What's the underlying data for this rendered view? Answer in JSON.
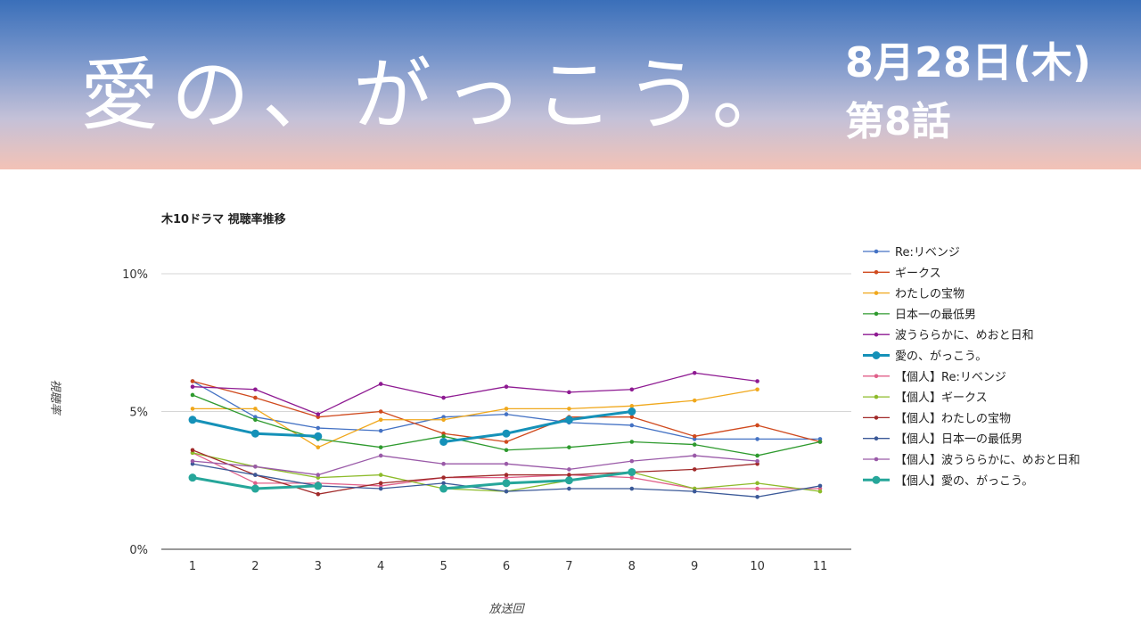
{
  "header": {
    "show_title": "愛の、がっこう。",
    "air_date": "8月28日(木)",
    "episode": "第8話"
  },
  "chart_data": {
    "type": "line",
    "title": "木10ドラマ 視聴率推移",
    "xlabel": "放送回",
    "ylabel": "視聴率",
    "x": [
      1,
      2,
      3,
      4,
      5,
      6,
      7,
      8,
      9,
      10,
      11
    ],
    "ylim": [
      0,
      10
    ],
    "yticks": [
      "0%",
      "5%",
      "10%"
    ],
    "ytick_values": [
      0,
      5,
      10
    ],
    "grid": true,
    "legend_position": "right",
    "series": [
      {
        "name": "Re:リベンジ",
        "color": "#4472c4",
        "values": [
          6.1,
          4.8,
          4.4,
          4.3,
          4.8,
          4.9,
          4.6,
          4.5,
          4.0,
          4.0,
          4.0
        ]
      },
      {
        "name": "ギークス",
        "color": "#d04a1e",
        "values": [
          6.1,
          5.5,
          4.8,
          5.0,
          4.2,
          3.9,
          4.8,
          4.8,
          4.1,
          4.5,
          3.9
        ]
      },
      {
        "name": "わたしの宝物",
        "color": "#f0a81c",
        "values": [
          5.1,
          5.1,
          3.7,
          4.7,
          4.7,
          5.1,
          5.1,
          5.2,
          5.4,
          5.8,
          null
        ]
      },
      {
        "name": "日本一の最低男",
        "color": "#2e9a2e",
        "values": [
          5.6,
          4.7,
          4.0,
          3.7,
          4.1,
          3.6,
          3.7,
          3.9,
          3.8,
          3.4,
          3.9
        ]
      },
      {
        "name": "波うららかに、めおと日和",
        "color": "#8e1a92",
        "values": [
          5.9,
          5.8,
          4.9,
          6.0,
          5.5,
          5.9,
          5.7,
          5.8,
          6.4,
          6.1,
          null
        ]
      },
      {
        "name": "愛の、がっこう。",
        "color": "#1591b8",
        "bold": true,
        "values": [
          4.7,
          4.2,
          4.1,
          null,
          3.9,
          4.2,
          4.7,
          5.0,
          null,
          null,
          null
        ]
      },
      {
        "name": "【個人】Re:リベンジ",
        "color": "#e0608a",
        "values": [
          3.5,
          2.4,
          2.4,
          2.3,
          2.6,
          2.6,
          2.7,
          2.6,
          2.2,
          2.2,
          2.2
        ]
      },
      {
        "name": "【個人】ギークス",
        "color": "#8dbb2a",
        "values": [
          3.5,
          3.0,
          2.6,
          2.7,
          2.2,
          2.1,
          2.5,
          2.8,
          2.2,
          2.4,
          2.1
        ]
      },
      {
        "name": "【個人】わたしの宝物",
        "color": "#a12a2a",
        "values": [
          3.6,
          2.7,
          2.0,
          2.4,
          2.6,
          2.7,
          2.7,
          2.8,
          2.9,
          3.1,
          null
        ]
      },
      {
        "name": "【個人】日本一の最低男",
        "color": "#3b5998",
        "values": [
          3.1,
          2.7,
          2.3,
          2.2,
          2.4,
          2.1,
          2.2,
          2.2,
          2.1,
          1.9,
          2.3
        ]
      },
      {
        "name": "【個人】波うららかに、めおと日和",
        "color": "#9a5aa8",
        "values": [
          3.2,
          3.0,
          2.7,
          3.4,
          3.1,
          3.1,
          2.9,
          3.2,
          3.4,
          3.2,
          null
        ]
      },
      {
        "name": "【個人】愛の、がっこう。",
        "color": "#26a69a",
        "bold": true,
        "values": [
          2.6,
          2.2,
          2.3,
          null,
          2.2,
          2.4,
          2.5,
          2.8,
          null,
          null,
          null
        ]
      }
    ]
  }
}
